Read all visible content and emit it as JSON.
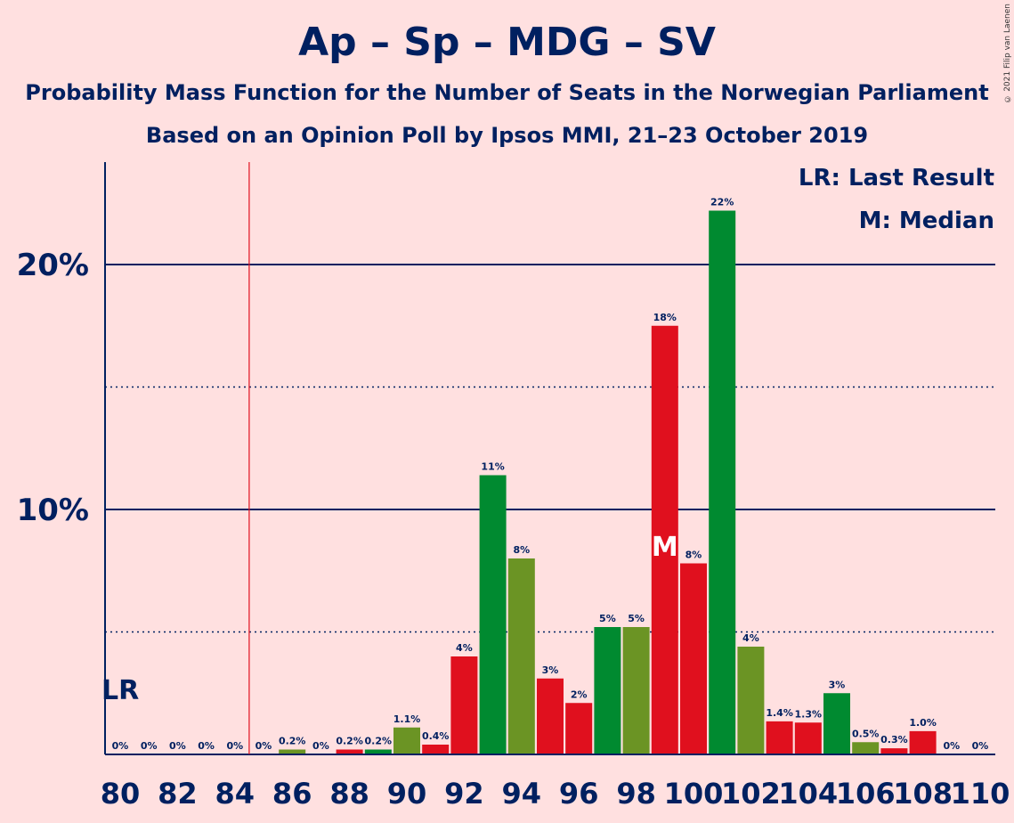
{
  "title": "Ap – Sp – MDG – SV",
  "subtitle1": "Probability Mass Function for the Number of Seats in the Norwegian Parliament",
  "subtitle2": "Based on an Opinion Poll by Ipsos MMI, 21–23 October 2019",
  "copyright": "© 2021 Filip van Laenen",
  "legend": {
    "lr": "LR: Last Result",
    "m": "M: Median"
  },
  "colors": {
    "background": "#FFE0E0",
    "axis": "#002060",
    "red": "#E0101E",
    "green": "#008A30",
    "olive": "#6B9424",
    "lastResultLine": "#E0101E"
  },
  "chart_data": {
    "type": "bar",
    "x": [
      80,
      81,
      82,
      83,
      84,
      85,
      86,
      87,
      88,
      89,
      90,
      91,
      92,
      93,
      94,
      95,
      96,
      97,
      98,
      99,
      100,
      101,
      102,
      103,
      104,
      105,
      106,
      107,
      108,
      109,
      110
    ],
    "values": [
      0,
      0,
      0,
      0,
      0,
      0,
      0.2,
      0,
      0.2,
      0.2,
      1.1,
      0.4,
      4.0,
      11.4,
      8.0,
      3.1,
      2.1,
      5.2,
      5.2,
      17.5,
      7.8,
      22.2,
      4.4,
      1.35,
      1.3,
      2.5,
      0.5,
      0.25,
      0.95,
      0,
      0
    ],
    "labels": [
      "0%",
      "0%",
      "0%",
      "0%",
      "0%",
      "0%",
      "0.2%",
      "0%",
      "0.2%",
      "0.2%",
      "1.1%",
      "0.4%",
      "4%",
      "11%",
      "8%",
      "3%",
      "2%",
      "5%",
      "5%",
      "18%",
      "8%",
      "22%",
      "4%",
      "1.4%",
      "1.3%",
      "3%",
      "0.5%",
      "0.3%",
      "1.0%",
      "0%",
      "0%"
    ],
    "bar_colors": [
      "red",
      "green",
      "olive",
      "red",
      "green",
      "olive",
      "olive",
      "red",
      "red",
      "green",
      "olive",
      "red",
      "red",
      "green",
      "olive",
      "red",
      "red",
      "green",
      "olive",
      "red",
      "red",
      "green",
      "olive",
      "red",
      "red",
      "green",
      "olive",
      "red",
      "red",
      "green",
      "olive"
    ],
    "xticks": [
      80,
      82,
      84,
      86,
      88,
      90,
      92,
      94,
      96,
      98,
      100,
      102,
      104,
      106,
      108,
      110
    ],
    "yticks": [
      {
        "value": 10,
        "label": "10%"
      },
      {
        "value": 20,
        "label": "20%"
      }
    ],
    "dotted_lines": [
      5,
      15
    ],
    "ylim": [
      0,
      24
    ],
    "last_result": 85,
    "last_result_label": "LR",
    "median": 99,
    "median_label": "M"
  }
}
